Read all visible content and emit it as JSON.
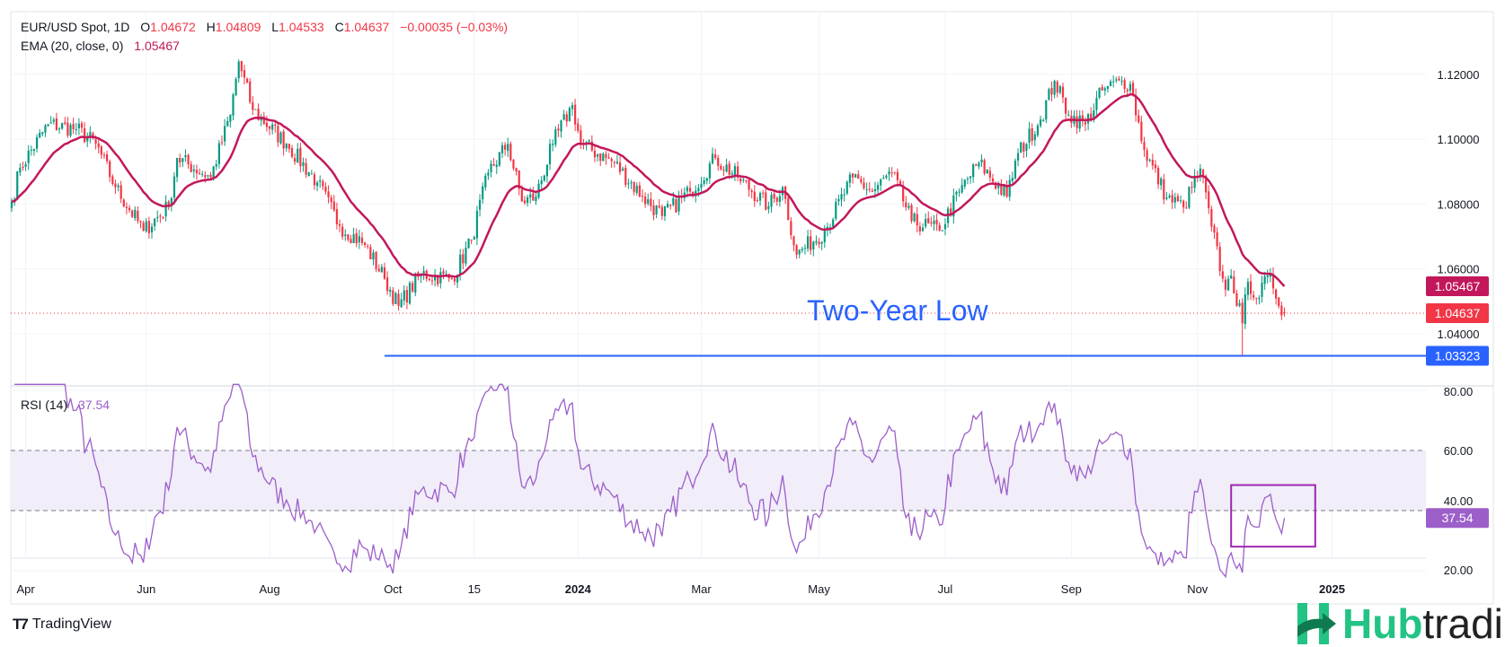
{
  "header": {
    "symbol": "EUR/USD Spot, 1D",
    "o_label": "O",
    "o": "1.04672",
    "h_label": "H",
    "h": "1.04809",
    "l_label": "L",
    "l": "1.04533",
    "c_label": "C",
    "c": "1.04637",
    "change": "−0.00035 (−0.03%)"
  },
  "ema_legend": {
    "label": "EMA (20, close, 0)",
    "value": "1.05467"
  },
  "rsi_legend": {
    "label": "RSI (14)",
    "value": "37.54"
  },
  "annotation": {
    "text": "Two-Year Low",
    "level": 1.03323
  },
  "footer": {
    "brand": "TradingView"
  },
  "watermark": {
    "part1": "Hub",
    "part2": "trading"
  },
  "colors": {
    "up": "#089981",
    "down": "#f23645",
    "ema": "#c2185b",
    "rsi": "#9c5fc9",
    "line": "#2962ff",
    "band": "#f1edf9"
  },
  "chart_data": [
    {
      "type": "candlestick",
      "title": "EUR/USD Spot, 1D",
      "x_unit": "trading days from chart start (late Mar 2023)",
      "ylim": [
        1.025,
        1.13
      ],
      "y_ticks": [
        "1.12000",
        "1.10000",
        "1.08000",
        "1.06000",
        "1.04000"
      ],
      "y_tick_values": [
        1.12,
        1.1,
        1.08,
        1.06,
        1.04
      ],
      "x_ticks": [
        {
          "d": 5,
          "label": "Apr"
        },
        {
          "d": 48,
          "label": "Jun"
        },
        {
          "d": 92,
          "label": "Aug"
        },
        {
          "d": 136,
          "label": "Oct"
        },
        {
          "d": 165,
          "label": "15"
        },
        {
          "d": 202,
          "label": "2024",
          "bold": true
        },
        {
          "d": 246,
          "label": "Mar"
        },
        {
          "d": 288,
          "label": "May"
        },
        {
          "d": 333,
          "label": "Jul"
        },
        {
          "d": 378,
          "label": "Sep"
        },
        {
          "d": 423,
          "label": "Nov"
        },
        {
          "d": 471,
          "label": "2025",
          "bold": true
        }
      ],
      "close_anchors": [
        [
          0,
          1.0808
        ],
        [
          3,
          1.0912
        ],
        [
          13,
          1.1046
        ],
        [
          23,
          1.1031
        ],
        [
          30,
          1.0986
        ],
        [
          37,
          1.0852
        ],
        [
          47,
          1.0718
        ],
        [
          56,
          1.0793
        ],
        [
          59,
          1.0942
        ],
        [
          71,
          1.0882
        ],
        [
          78,
          1.1076
        ],
        [
          81,
          1.1239
        ],
        [
          86,
          1.109
        ],
        [
          98,
          1.0986
        ],
        [
          109,
          1.0867
        ],
        [
          117,
          1.0733
        ],
        [
          126,
          1.0674
        ],
        [
          133,
          1.057
        ],
        [
          138,
          1.0486
        ],
        [
          146,
          1.0585
        ],
        [
          157,
          1.057
        ],
        [
          164,
          1.0689
        ],
        [
          170,
          1.0897
        ],
        [
          177,
          1.0986
        ],
        [
          182,
          1.0808
        ],
        [
          187,
          1.0823
        ],
        [
          193,
          1.0986
        ],
        [
          200,
          1.1105
        ],
        [
          203,
          1.0986
        ],
        [
          215,
          1.0927
        ],
        [
          225,
          1.0823
        ],
        [
          232,
          1.0763
        ],
        [
          242,
          1.0838
        ],
        [
          251,
          1.0942
        ],
        [
          259,
          1.0882
        ],
        [
          270,
          1.0793
        ],
        [
          275,
          1.0852
        ],
        [
          280,
          1.0644
        ],
        [
          290,
          1.0718
        ],
        [
          300,
          1.0882
        ],
        [
          307,
          1.0838
        ],
        [
          314,
          1.0897
        ],
        [
          321,
          1.0748
        ],
        [
          331,
          1.0718
        ],
        [
          338,
          1.0838
        ],
        [
          345,
          1.0927
        ],
        [
          355,
          1.0823
        ],
        [
          359,
          1.0957
        ],
        [
          367,
          1.1061
        ],
        [
          372,
          1.118
        ],
        [
          377,
          1.1076
        ],
        [
          383,
          1.1046
        ],
        [
          389,
          1.115
        ],
        [
          396,
          1.118
        ],
        [
          399,
          1.117
        ],
        [
          404,
          1.0967
        ],
        [
          412,
          1.082
        ],
        [
          418,
          1.079
        ],
        [
          424,
          1.091
        ],
        [
          428,
          1.073
        ],
        [
          432,
          1.057
        ],
        [
          433,
          1.0536
        ],
        [
          435,
          1.058
        ],
        [
          439,
          1.0433
        ],
        [
          441,
          1.056
        ],
        [
          445,
          1.051
        ],
        [
          448,
          1.058
        ],
        [
          450,
          1.054
        ],
        [
          454,
          1.04637
        ]
      ],
      "last_candle": {
        "open": 1.04672,
        "high": 1.04809,
        "low": 1.04533,
        "close": 1.04637
      },
      "two_year_low": 1.03323,
      "two_year_low_day": 439,
      "ema_period": 20,
      "ema_last": 1.05467,
      "price_labels": {
        "ema": "1.05467",
        "last": "1.04637",
        "low": "1.03323"
      }
    },
    {
      "type": "line",
      "title": "RSI (14)",
      "ylim": [
        20,
        80
      ],
      "y_ticks": [
        "80.00",
        "60.00",
        "40.00",
        "20.00"
      ],
      "y_tick_values": [
        80,
        60,
        40,
        20
      ],
      "band": [
        40,
        60
      ],
      "last_value": 37.54,
      "last_label": "37.54",
      "highlight_box": {
        "d_from": 435,
        "d_to": 465,
        "rsi_from": 28,
        "rsi_to": 48.5
      }
    }
  ]
}
